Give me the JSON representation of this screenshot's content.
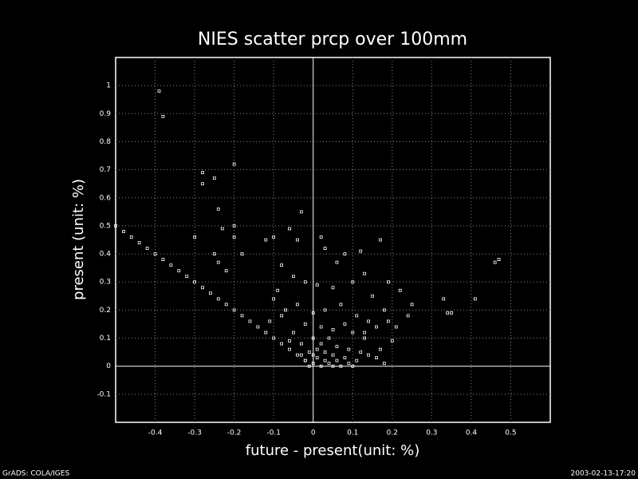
{
  "chart_data": {
    "type": "scatter",
    "title": "NIES scatter prcp over 100mm",
    "x_label": "future - present(unit: %)",
    "y_label": "present (unit: %)",
    "color": "#ffffff",
    "grid": true,
    "xlim": [
      -0.5,
      0.6
    ],
    "ylim": [
      -0.2,
      1.1
    ],
    "xticks": [
      -0.4,
      -0.3,
      -0.2,
      -0.1,
      0,
      0.1,
      0.2,
      0.3,
      0.4,
      0.5
    ],
    "yticks": [
      -0.1,
      0,
      0.1,
      0.2,
      0.3,
      0.4,
      0.5,
      0.6,
      0.7,
      0.8,
      0.9,
      1
    ],
    "x": [
      -0.5,
      -0.48,
      -0.46,
      -0.44,
      -0.42,
      -0.4,
      -0.38,
      -0.36,
      -0.34,
      -0.32,
      -0.3,
      -0.28,
      -0.26,
      -0.24,
      -0.22,
      -0.2,
      -0.18,
      -0.16,
      -0.14,
      -0.12,
      -0.1,
      -0.08,
      -0.06,
      -0.04,
      -0.02,
      -0.39,
      -0.38,
      -0.28,
      -0.28,
      -0.25,
      -0.2,
      -0.24,
      -0.3,
      -0.2,
      -0.2,
      -0.23,
      -0.25,
      -0.24,
      -0.22,
      -0.18,
      -0.1,
      -0.12,
      -0.03,
      -0.06,
      -0.04,
      0.02,
      0.03,
      0.08,
      0.06,
      0.12,
      0.17,
      0.13,
      0.19,
      0.22,
      0.25,
      0.24,
      0.33,
      0.34,
      0.35,
      0.41,
      0.46,
      0.47,
      -0.08,
      -0.05,
      -0.02,
      0.01,
      0.05,
      0.1,
      0.15,
      -0.09,
      -0.1,
      -0.07,
      -0.04,
      0,
      0.03,
      0.07,
      0.11,
      0.14,
      0.18,
      0.21,
      0.2,
      0.17,
      0.18,
      0.16,
      0.13,
      0.1,
      0.08,
      0.05,
      0.02,
      -0.02,
      -0.05,
      -0.06,
      -0.03,
      0,
      0.02,
      0.04,
      0.06,
      0.09,
      0.12,
      0.14,
      0.11,
      0.08,
      0.05,
      0.03,
      0.01,
      -0.01,
      -0.03,
      -0.02,
      0,
      0.02,
      0.04,
      0.06,
      0.07,
      0.09,
      0.01,
      0.03,
      0.05,
      0.1,
      -0.01,
      0,
      -0.08,
      -0.11,
      0.13,
      0.16,
      0.19
    ],
    "values": [
      0.5,
      0.48,
      0.46,
      0.44,
      0.42,
      0.4,
      0.38,
      0.36,
      0.34,
      0.32,
      0.3,
      0.28,
      0.26,
      0.24,
      0.22,
      0.2,
      0.18,
      0.16,
      0.14,
      0.12,
      0.1,
      0.08,
      0.06,
      0.04,
      0.02,
      0.98,
      0.89,
      0.69,
      0.65,
      0.67,
      0.72,
      0.56,
      0.46,
      0.5,
      0.46,
      0.49,
      0.4,
      0.37,
      0.34,
      0.4,
      0.46,
      0.45,
      0.55,
      0.49,
      0.45,
      0.46,
      0.42,
      0.4,
      0.37,
      0.41,
      0.45,
      0.33,
      0.3,
      0.27,
      0.22,
      0.18,
      0.24,
      0.19,
      0.19,
      0.24,
      0.37,
      0.38,
      0.36,
      0.32,
      0.3,
      0.29,
      0.28,
      0.3,
      0.25,
      0.27,
      0.24,
      0.2,
      0.22,
      0.19,
      0.2,
      0.22,
      0.18,
      0.16,
      0.2,
      0.14,
      0.09,
      0.06,
      0.01,
      0.03,
      0.1,
      0.12,
      0.15,
      0.13,
      0.14,
      0.15,
      0.12,
      0.09,
      0.08,
      0.1,
      0.08,
      0.1,
      0.07,
      0.06,
      0.05,
      0.04,
      0.02,
      0.03,
      0.04,
      0.05,
      0.03,
      0.05,
      0.04,
      0.02,
      0.01,
      0,
      0.01,
      0.02,
      0,
      0.01,
      0.06,
      0.02,
      0,
      0,
      0,
      0.04,
      0.18,
      0.16,
      0.12,
      0.14,
      0.16
    ]
  },
  "footer": {
    "left": "GrADS: COLA/IGES",
    "right": "2003-02-13-17:20"
  }
}
